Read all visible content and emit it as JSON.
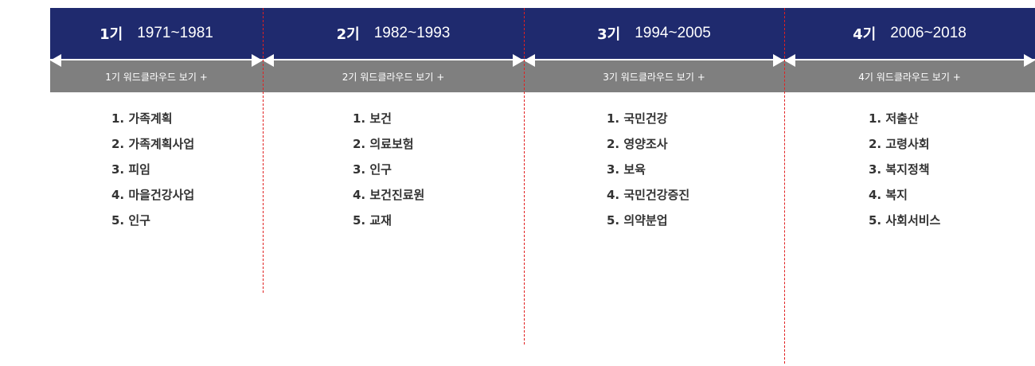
{
  "periods": [
    {
      "num": "1기",
      "years": "1971~1981",
      "wordcloud": "1기 워드클라우드 보기 +",
      "items": [
        "1. 가족계획",
        "2. 가족계획사업",
        "3. 피임",
        "4. 마을건강사업",
        "5. 인구"
      ]
    },
    {
      "num": "2기",
      "years": "1982~1993",
      "wordcloud": "2기 워드클라우드 보기 +",
      "items": [
        "1. 보건",
        "2. 의료보험",
        "3. 인구",
        "4. 보건진료원",
        "5. 교재"
      ]
    },
    {
      "num": "3기",
      "years": "1994~2005",
      "wordcloud": "3기 워드클라우드 보기 +",
      "items": [
        "1. 국민건강",
        "2. 영양조사",
        "3. 보육",
        "4. 국민건강증진",
        "5. 의약분업"
      ]
    },
    {
      "num": "4기",
      "years": "2006~2018",
      "wordcloud": "4기 워드클라우드 보기 +",
      "items": [
        "1. 저출산",
        "2. 고령사회",
        "3. 복지정책",
        "4. 복지",
        "5. 사회서비스"
      ]
    }
  ],
  "colors": {
    "header": "#1f2a6e",
    "wordcloud_bar": "#7f7f7f",
    "divider": "#e02020"
  }
}
